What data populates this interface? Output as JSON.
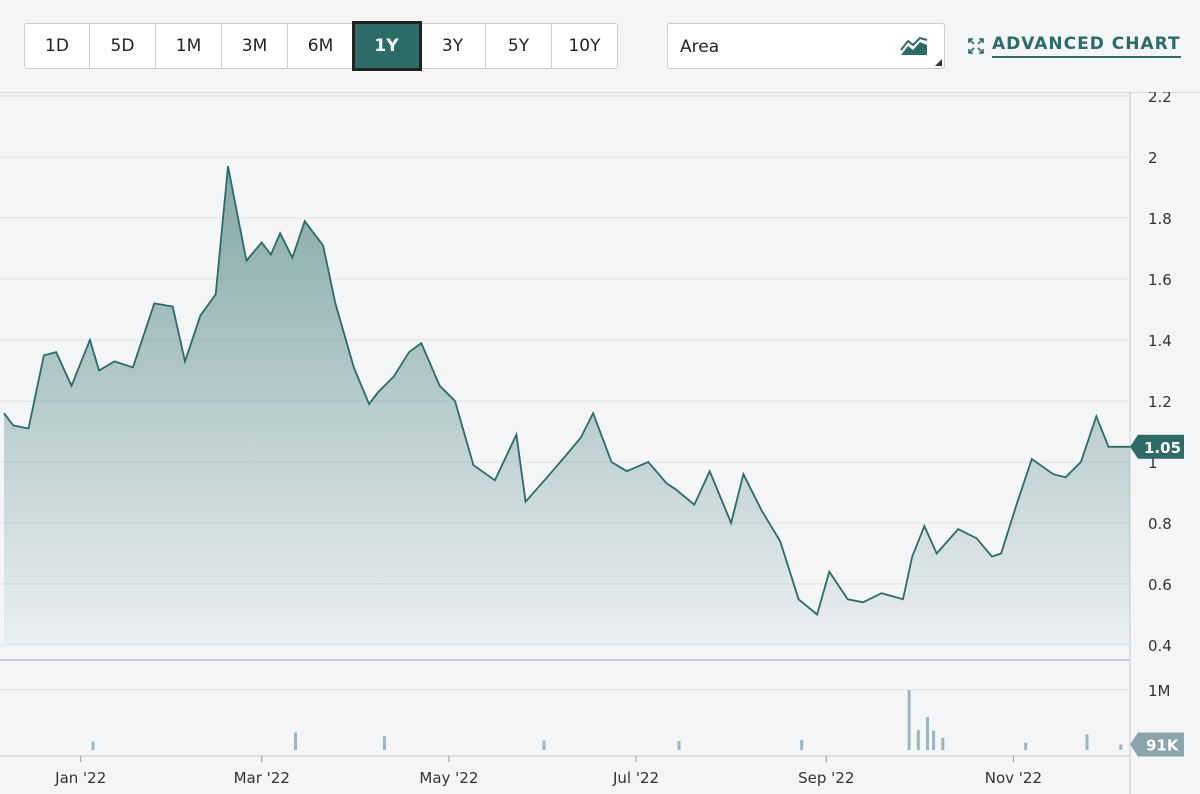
{
  "toolbar": {
    "ranges": [
      "1D",
      "5D",
      "1M",
      "3M",
      "6M",
      "1Y",
      "3Y",
      "5Y",
      "10Y"
    ],
    "active_range": "1Y",
    "chart_type": "Area",
    "advanced_label": "ADVANCED CHART"
  },
  "colors": {
    "accent": "#2d6b66",
    "area_fill": "#5e8f8b",
    "grid": "#d9dce0"
  },
  "chart_data": {
    "type": "area",
    "title": "",
    "xlabel": "",
    "ylabel": "",
    "ylim": [
      0.4,
      2.2
    ],
    "yticks": [
      0.4,
      0.6,
      0.8,
      1,
      1.2,
      1.4,
      1.6,
      1.8,
      2,
      2.2
    ],
    "ytick_labels": [
      "0.4",
      "0.6",
      "0.8",
      "1",
      "1.2",
      "1.4",
      "1.6",
      "1.8",
      "2",
      "2.2"
    ],
    "x_range": [
      "2021-12-07",
      "2022-12-09"
    ],
    "xtick_labels": [
      "Jan '22",
      "Mar '22",
      "May '22",
      "Jul '22",
      "Sep '22",
      "Nov '22"
    ],
    "xticks": [
      "2022-01-01",
      "2022-03-01",
      "2022-05-01",
      "2022-07-01",
      "2022-09-01",
      "2022-11-01"
    ],
    "last_price_label": "1.05",
    "price_series": {
      "x": [
        "2021-12-07",
        "2021-12-10",
        "2021-12-15",
        "2021-12-20",
        "2021-12-24",
        "2021-12-29",
        "2022-01-04",
        "2022-01-07",
        "2022-01-12",
        "2022-01-18",
        "2022-01-25",
        "2022-01-31",
        "2022-02-04",
        "2022-02-09",
        "2022-02-14",
        "2022-02-18",
        "2022-02-24",
        "2022-03-01",
        "2022-03-04",
        "2022-03-07",
        "2022-03-11",
        "2022-03-15",
        "2022-03-21",
        "2022-03-25",
        "2022-03-31",
        "2022-04-05",
        "2022-04-08",
        "2022-04-13",
        "2022-04-18",
        "2022-04-22",
        "2022-04-28",
        "2022-05-03",
        "2022-05-09",
        "2022-05-16",
        "2022-05-23",
        "2022-05-26",
        "2022-06-02",
        "2022-06-08",
        "2022-06-13",
        "2022-06-17",
        "2022-06-23",
        "2022-06-28",
        "2022-07-05",
        "2022-07-11",
        "2022-07-14",
        "2022-07-20",
        "2022-07-25",
        "2022-08-01",
        "2022-08-05",
        "2022-08-11",
        "2022-08-17",
        "2022-08-23",
        "2022-08-29",
        "2022-09-02",
        "2022-09-08",
        "2022-09-13",
        "2022-09-19",
        "2022-09-26",
        "2022-09-29",
        "2022-10-03",
        "2022-10-07",
        "2022-10-14",
        "2022-10-20",
        "2022-10-25",
        "2022-10-28",
        "2022-11-02",
        "2022-11-07",
        "2022-11-14",
        "2022-11-18",
        "2022-11-23",
        "2022-11-28",
        "2022-12-02",
        "2022-12-06",
        "2022-12-09"
      ],
      "y": [
        1.16,
        1.12,
        1.11,
        1.35,
        1.36,
        1.25,
        1.4,
        1.3,
        1.33,
        1.31,
        1.52,
        1.51,
        1.33,
        1.48,
        1.55,
        1.97,
        1.66,
        1.72,
        1.68,
        1.75,
        1.67,
        1.79,
        1.71,
        1.52,
        1.31,
        1.19,
        1.23,
        1.28,
        1.36,
        1.39,
        1.25,
        1.2,
        0.99,
        0.94,
        1.09,
        0.87,
        0.95,
        1.02,
        1.08,
        1.16,
        1.0,
        0.97,
        1.0,
        0.93,
        0.91,
        0.86,
        0.97,
        0.8,
        0.96,
        0.84,
        0.74,
        0.55,
        0.5,
        0.64,
        0.55,
        0.54,
        0.57,
        0.55,
        0.69,
        0.79,
        0.7,
        0.78,
        0.75,
        0.69,
        0.7,
        0.86,
        1.01,
        0.96,
        0.95,
        1.0,
        1.15,
        1.05,
        1.05,
        1.05
      ]
    },
    "volume_series": {
      "y_label": "1M",
      "last_volume_label": "91K",
      "x": [
        "2022-01-05",
        "2022-03-12",
        "2022-04-10",
        "2022-06-01",
        "2022-07-15",
        "2022-08-24",
        "2022-09-28",
        "2022-10-01",
        "2022-10-04",
        "2022-10-06",
        "2022-10-09",
        "2022-11-05",
        "2022-11-25",
        "2022-12-06"
      ],
      "values": [
        140000,
        290000,
        230000,
        160000,
        150000,
        170000,
        1000000,
        330000,
        550000,
        320000,
        200000,
        120000,
        260000,
        91000
      ]
    }
  }
}
